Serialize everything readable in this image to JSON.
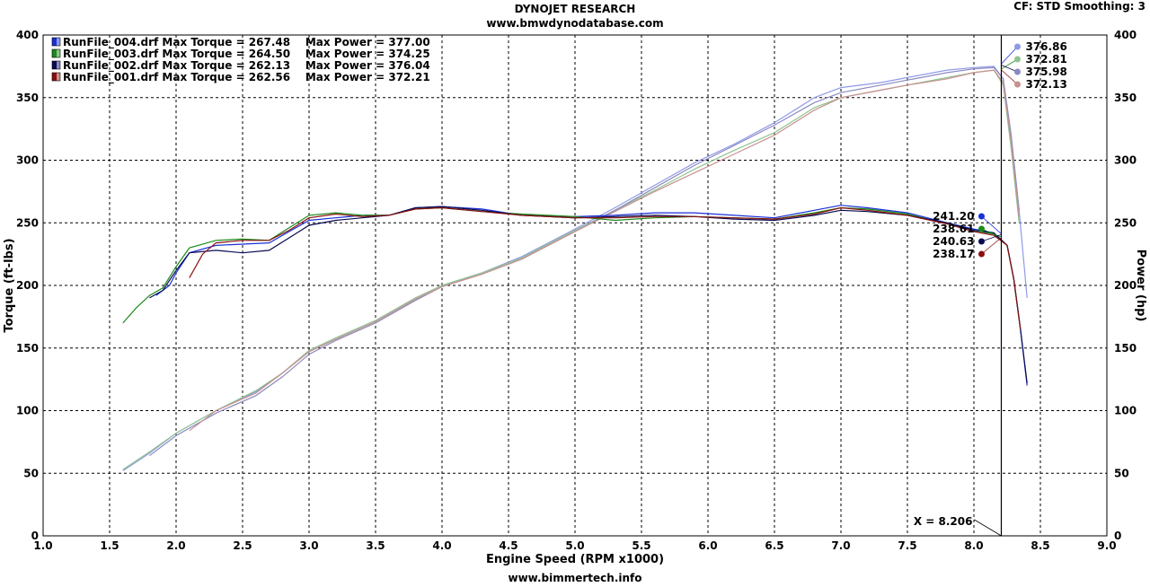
{
  "header": {
    "title": "DYNOJET RESEARCH",
    "subtitle": "www.bmwdynodatabase.com",
    "settings": "CF: STD  Smoothing: 3",
    "footer": "www.bimmertech.info"
  },
  "chart_data": {
    "type": "line",
    "xlabel": "Engine Speed (RPM x1000)",
    "ylabel_left": "Torque (ft-lbs)",
    "ylabel_right": "Power (hp)",
    "xlim": [
      1.0,
      9.0
    ],
    "ylim": [
      0,
      400
    ],
    "x_ticks": [
      "1.0",
      "1.5",
      "2.0",
      "2.5",
      "3.0",
      "3.5",
      "4.0",
      "4.5",
      "5.0",
      "5.5",
      "6.0",
      "6.5",
      "7.0",
      "7.5",
      "8.0",
      "8.5",
      "9.0"
    ],
    "y_ticks": [
      "0",
      "50",
      "100",
      "150",
      "200",
      "250",
      "300",
      "350",
      "400"
    ],
    "grid": true,
    "legend_position": "top-left",
    "cursor": {
      "x": 8.206,
      "label": "X = 8.206"
    },
    "series": [
      {
        "name": "RunFile_004.drf",
        "legend_text": "RunFile_004.drf Max Torque = 267.48    Max Power = 377.00",
        "color": "#1a2fd6",
        "power_color": "#8f9ae6",
        "torque_cursor": "241.20",
        "power_cursor": "376.86",
        "torque_cursor_value": 241.2,
        "power_cursor_value": 376.86,
        "torque": {
          "x": [
            1.85,
            1.95,
            2.0,
            2.1,
            2.3,
            2.5,
            2.7,
            2.85,
            3.0,
            3.2,
            3.4,
            3.6,
            3.8,
            4.0,
            4.3,
            4.6,
            5.0,
            5.3,
            5.6,
            5.9,
            6.2,
            6.5,
            6.8,
            7.0,
            7.2,
            7.5,
            7.8,
            8.0,
            8.15,
            8.25,
            8.3,
            8.35,
            8.4
          ],
          "y": [
            192,
            200,
            210,
            226,
            232,
            233,
            234,
            243,
            252,
            254,
            256,
            256,
            262,
            263,
            261,
            256,
            255,
            256,
            258,
            258,
            256,
            254,
            260,
            264,
            262,
            258,
            250,
            245,
            242,
            232,
            205,
            165,
            120
          ]
        },
        "power": {
          "x": [
            1.6,
            1.8,
            2.0,
            2.3,
            2.6,
            2.8,
            3.0,
            3.2,
            3.5,
            3.8,
            4.0,
            4.3,
            4.6,
            5.0,
            5.3,
            5.6,
            5.9,
            6.2,
            6.5,
            6.8,
            7.0,
            7.3,
            7.5,
            7.8,
            8.0,
            8.15,
            8.22,
            8.28,
            8.34,
            8.4
          ],
          "y": [
            52,
            66,
            82,
            100,
            115,
            130,
            148,
            158,
            172,
            190,
            200,
            210,
            223,
            245,
            262,
            280,
            298,
            313,
            330,
            350,
            358,
            362,
            366,
            372,
            374,
            375,
            365,
            320,
            260,
            190
          ]
        }
      },
      {
        "name": "RunFile_003.drf",
        "legend_text": "RunFile_003.drf Max Torque = 264.50    Max Power = 374.25",
        "color": "#1a8a1a",
        "power_color": "#8fc48f",
        "torque_cursor": "238.61",
        "power_cursor": "372.81",
        "torque_cursor_value": 238.61,
        "power_cursor_value": 372.81,
        "torque": {
          "x": [
            1.6,
            1.7,
            1.8,
            1.9,
            2.0,
            2.1,
            2.3,
            2.5,
            2.7,
            2.85,
            3.0,
            3.2,
            3.4,
            3.6,
            3.8,
            4.0,
            4.3,
            4.6,
            5.0,
            5.3,
            5.6,
            5.9,
            6.2,
            6.5,
            6.8,
            7.0,
            7.2,
            7.5,
            7.8,
            8.0,
            8.15,
            8.25,
            8.3,
            8.35
          ],
          "y": [
            170,
            182,
            192,
            198,
            215,
            230,
            236,
            237,
            236,
            246,
            256,
            258,
            256,
            256,
            261,
            262,
            259,
            257,
            255,
            252,
            254,
            255,
            254,
            253,
            258,
            262,
            261,
            257,
            249,
            244,
            241,
            232,
            205,
            165
          ]
        },
        "power": {
          "x": [
            1.6,
            1.8,
            2.0,
            2.3,
            2.6,
            2.8,
            3.0,
            3.2,
            3.5,
            3.8,
            4.0,
            4.3,
            4.6,
            5.0,
            5.3,
            5.6,
            5.9,
            6.2,
            6.5,
            6.8,
            7.0,
            7.3,
            7.5,
            7.8,
            8.0,
            8.15,
            8.22,
            8.28,
            8.34
          ],
          "y": [
            53,
            67,
            82,
            100,
            116,
            130,
            148,
            158,
            172,
            190,
            200,
            210,
            222,
            244,
            260,
            276,
            293,
            308,
            322,
            342,
            350,
            356,
            360,
            366,
            370,
            372,
            360,
            310,
            250
          ]
        }
      },
      {
        "name": "RunFile_002.drf",
        "legend_text": "RunFile_002.drf Max Torque = 262.13    Max Power = 376.04",
        "color": "#0a0a50",
        "power_color": "#8a8ac0",
        "torque_cursor": "240.63",
        "power_cursor": "375.98",
        "torque_cursor_value": 240.63,
        "power_cursor_value": 375.98,
        "torque": {
          "x": [
            1.8,
            1.9,
            2.0,
            2.1,
            2.3,
            2.5,
            2.7,
            2.85,
            3.0,
            3.2,
            3.4,
            3.6,
            3.8,
            4.0,
            4.3,
            4.6,
            5.0,
            5.3,
            5.6,
            5.9,
            6.2,
            6.5,
            6.8,
            7.0,
            7.2,
            7.5,
            7.8,
            8.0,
            8.15,
            8.25,
            8.3,
            8.35,
            8.4
          ],
          "y": [
            190,
            196,
            212,
            226,
            228,
            226,
            228,
            238,
            248,
            252,
            254,
            256,
            262,
            263,
            260,
            256,
            254,
            255,
            256,
            255,
            253,
            252,
            256,
            260,
            259,
            256,
            250,
            244,
            242,
            232,
            205,
            165,
            122
          ]
        },
        "power": {
          "x": [
            1.8,
            2.0,
            2.3,
            2.6,
            2.8,
            3.0,
            3.2,
            3.5,
            3.8,
            4.0,
            4.3,
            4.6,
            5.0,
            5.3,
            5.6,
            5.9,
            6.2,
            6.5,
            6.8,
            7.0,
            7.3,
            7.5,
            7.8,
            8.0,
            8.15,
            8.22,
            8.28,
            8.34
          ],
          "y": [
            64,
            80,
            98,
            112,
            127,
            145,
            156,
            170,
            188,
            199,
            209,
            221,
            243,
            260,
            278,
            296,
            312,
            328,
            346,
            354,
            360,
            364,
            370,
            373,
            374,
            365,
            320,
            260
          ]
        }
      },
      {
        "name": "RunFile_001.drf",
        "legend_text": "RunFile_001.drf Max Torque = 262.56    Max Power = 372.21",
        "color": "#8a1010",
        "power_color": "#c89090",
        "torque_cursor": "238.17",
        "power_cursor": "372.13",
        "torque_cursor_value": 238.17,
        "power_cursor_value": 372.13,
        "torque": {
          "x": [
            2.1,
            2.2,
            2.3,
            2.5,
            2.7,
            2.85,
            3.0,
            3.2,
            3.4,
            3.6,
            3.8,
            4.0,
            4.3,
            4.6,
            5.0,
            5.3,
            5.6,
            5.9,
            6.2,
            6.5,
            6.8,
            7.0,
            7.2,
            7.5,
            7.8,
            8.0,
            8.15,
            8.25,
            8.3,
            8.35
          ],
          "y": [
            206,
            225,
            234,
            236,
            236,
            244,
            254,
            257,
            255,
            256,
            261,
            262,
            259,
            256,
            254,
            254,
            255,
            255,
            254,
            253,
            257,
            262,
            260,
            256,
            249,
            243,
            240,
            232,
            205,
            165
          ]
        },
        "power": {
          "x": [
            2.1,
            2.3,
            2.6,
            2.8,
            3.0,
            3.2,
            3.5,
            3.8,
            4.0,
            4.3,
            4.6,
            5.0,
            5.3,
            5.6,
            5.9,
            6.2,
            6.5,
            6.8,
            7.0,
            7.3,
            7.5,
            7.8,
            8.0,
            8.15,
            8.22,
            8.28,
            8.34
          ],
          "y": [
            84,
            100,
            114,
            130,
            147,
            157,
            171,
            189,
            199,
            209,
            221,
            243,
            259,
            275,
            290,
            305,
            320,
            340,
            350,
            356,
            360,
            365,
            370,
            372,
            362,
            315,
            255
          ]
        }
      }
    ]
  }
}
